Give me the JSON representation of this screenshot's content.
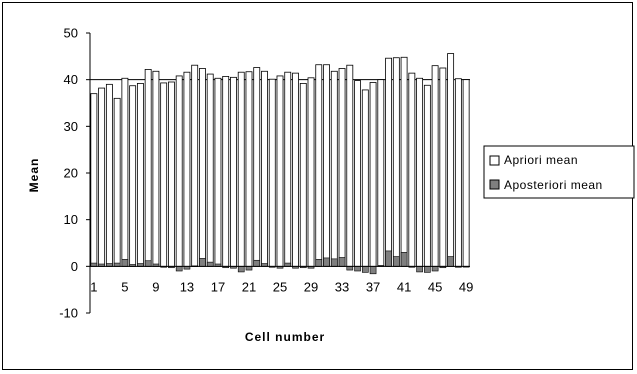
{
  "chart_data": {
    "type": "bar",
    "title": "",
    "xlabel": "Cell number",
    "ylabel": "Mean",
    "ylim": [
      -10,
      50
    ],
    "yticks": [
      -10,
      0,
      10,
      20,
      30,
      40,
      50
    ],
    "xtick_labels": [
      "1",
      "5",
      "9",
      "13",
      "17",
      "21",
      "25",
      "29",
      "33",
      "37",
      "41",
      "45",
      "49"
    ],
    "xtick_positions": [
      1,
      5,
      9,
      13,
      17,
      21,
      25,
      29,
      33,
      37,
      41,
      45,
      49
    ],
    "grid": "horizontal at 40",
    "legend_position": "right",
    "categories": [
      1,
      2,
      3,
      4,
      5,
      6,
      7,
      8,
      9,
      10,
      11,
      12,
      13,
      14,
      15,
      16,
      17,
      18,
      19,
      20,
      21,
      22,
      23,
      24,
      25,
      26,
      27,
      28,
      29,
      30,
      31,
      32,
      33,
      34,
      35,
      36,
      37,
      38,
      39,
      40,
      41,
      42,
      43,
      44,
      45,
      46,
      47,
      48,
      49
    ],
    "series": [
      {
        "name": "Apriori mean",
        "color": "#ffffff",
        "values": [
          37.0,
          38.2,
          39.0,
          36.0,
          40.3,
          38.7,
          39.2,
          42.2,
          41.8,
          39.3,
          39.5,
          40.8,
          41.6,
          43.1,
          42.4,
          41.2,
          40.3,
          40.7,
          40.5,
          41.6,
          41.7,
          42.6,
          41.8,
          40.1,
          40.8,
          41.6,
          41.4,
          39.2,
          40.4,
          43.2,
          43.2,
          41.8,
          42.4,
          43.1,
          39.8,
          37.8,
          39.4,
          40.0,
          44.6,
          44.7,
          44.8,
          41.4,
          40.3,
          38.8,
          43.0,
          42.5,
          45.6,
          40.2,
          40.0
        ]
      },
      {
        "name": "Aposteriori mean",
        "color": "#7f7f7f",
        "values": [
          0.7,
          0.5,
          0.6,
          0.7,
          1.5,
          0.4,
          0.6,
          1.2,
          0.5,
          -0.2,
          -0.3,
          -1.0,
          -0.6,
          0.1,
          1.7,
          0.9,
          0.5,
          -0.3,
          -0.4,
          -1.2,
          -0.8,
          1.3,
          0.6,
          -0.2,
          -0.4,
          0.7,
          -0.4,
          -0.3,
          -0.4,
          1.5,
          1.8,
          1.6,
          1.9,
          -0.8,
          -1.0,
          -1.3,
          -1.6,
          0.2,
          3.3,
          2.1,
          3.0,
          -0.2,
          -1.2,
          -1.3,
          -1.0,
          -0.3,
          2.1,
          -0.2,
          0.0
        ]
      }
    ]
  }
}
